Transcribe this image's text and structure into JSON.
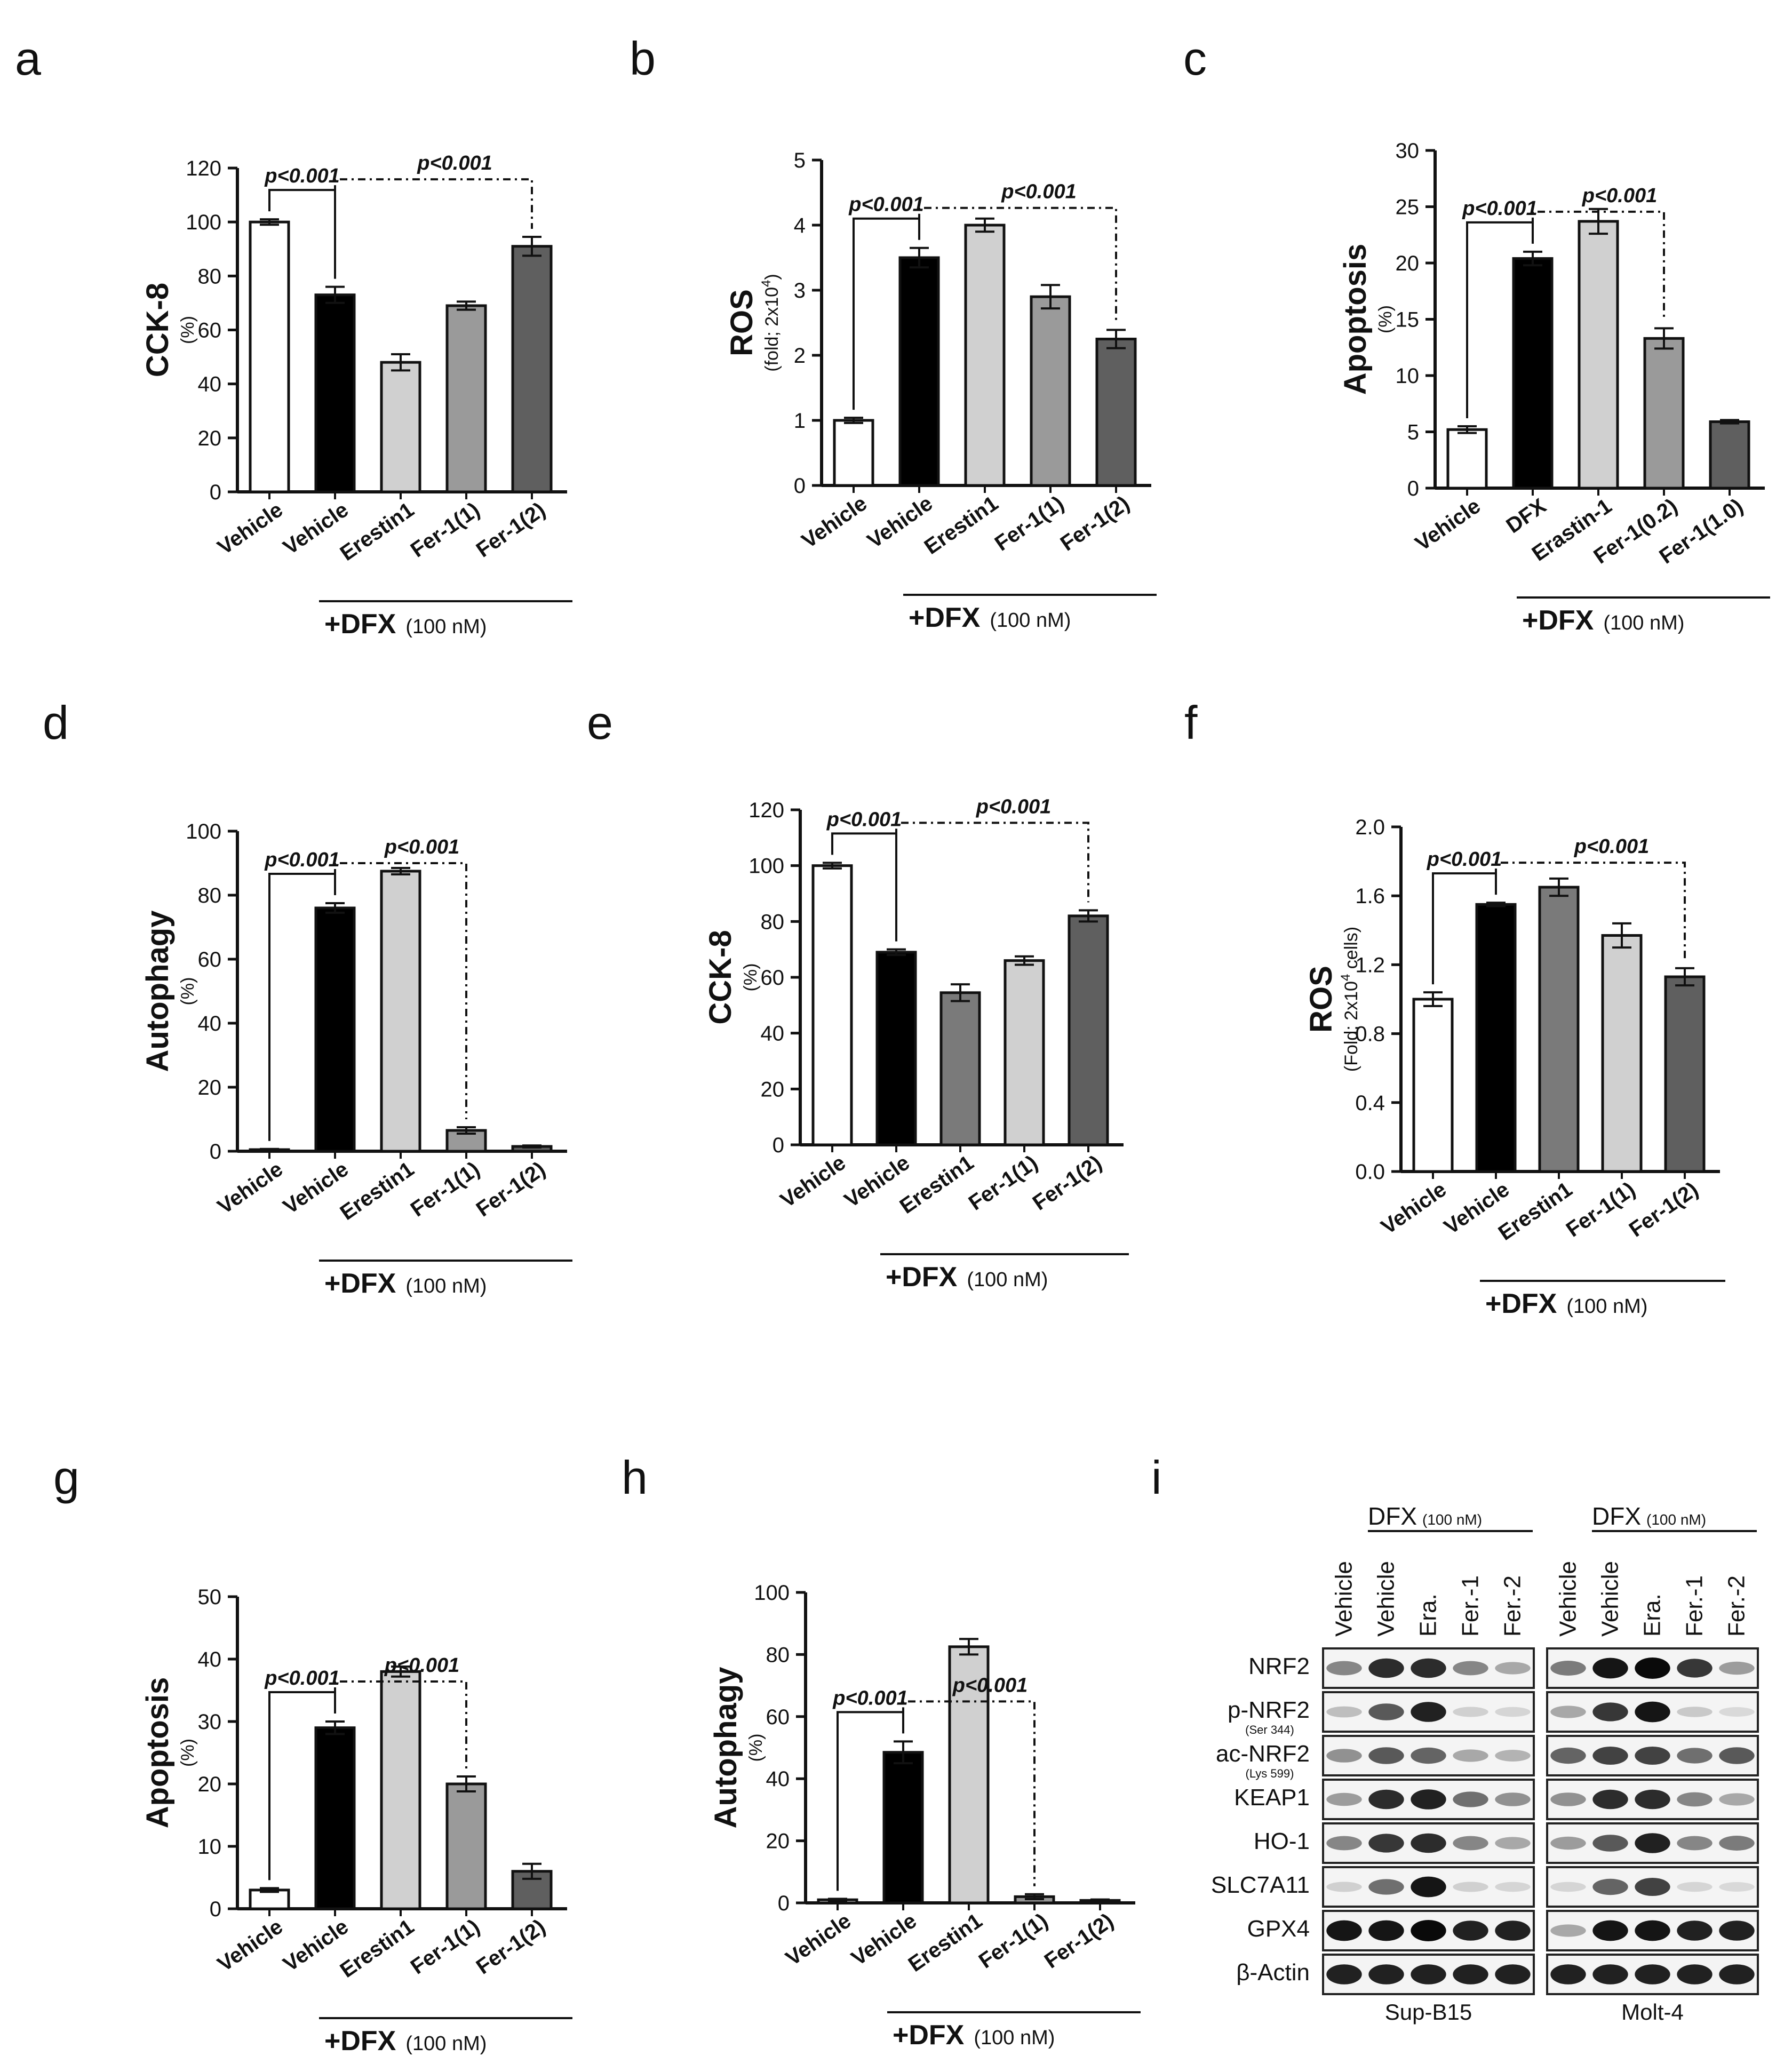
{
  "panel_labels": [
    "a",
    "b",
    "c",
    "d",
    "e",
    "f",
    "g",
    "h",
    "i"
  ],
  "chart_data": [
    {
      "id": "a",
      "type": "bar",
      "ylabel": "CCK-8",
      "yunit": "(%)",
      "ylim": [
        0,
        120
      ],
      "yticks": [
        "0",
        "20",
        "40",
        "60",
        "80",
        "100",
        "120"
      ],
      "categories": [
        "Vehicle",
        "Vehicle",
        "Erestin1",
        "Fer-1(1)",
        "Fer-1(2)"
      ],
      "values": [
        100,
        73,
        48,
        69,
        91
      ],
      "errors": [
        1,
        3,
        3,
        1.5,
        3.5
      ],
      "colors": [
        "#ffffff",
        "#000000",
        "#d0d0d0",
        "#9a9a9a",
        "#5f5f5f"
      ],
      "pvalues": [
        "p<0.001",
        "p<0.001"
      ],
      "treatment_label": "+DFX",
      "treatment_dose": "(100 nM)"
    },
    {
      "id": "b",
      "type": "bar",
      "ylabel": "ROS",
      "yunit": "(fold; 2x10",
      "yunit_sup": "4",
      "yunit_end": ")",
      "ylim": [
        0,
        5
      ],
      "yticks": [
        "0",
        "1",
        "2",
        "3",
        "4",
        "5"
      ],
      "categories": [
        "Vehicle",
        "Vehicle",
        "Erestin1",
        "Fer-1(1)",
        "Fer-1(2)"
      ],
      "values": [
        1.0,
        3.5,
        4.0,
        2.9,
        2.25
      ],
      "errors": [
        0.04,
        0.15,
        0.1,
        0.18,
        0.14
      ],
      "colors": [
        "#ffffff",
        "#000000",
        "#d0d0d0",
        "#9a9a9a",
        "#5f5f5f"
      ],
      "pvalues": [
        "p<0.001",
        "p<0.001"
      ],
      "treatment_label": "+DFX",
      "treatment_dose": "(100 nM)"
    },
    {
      "id": "c",
      "type": "bar",
      "ylabel": "Apoptosis",
      "yunit": "(%)",
      "ylim": [
        0,
        30
      ],
      "yticks": [
        "0",
        "5",
        "10",
        "15",
        "20",
        "25",
        "30"
      ],
      "categories": [
        "Vehicle",
        "DFX",
        "Erastin-1",
        "Fer-1(0.2)",
        "Fer-1(1.0)"
      ],
      "values": [
        5.2,
        20.4,
        23.7,
        13.3,
        5.9
      ],
      "errors": [
        0.3,
        0.6,
        1.1,
        0.9,
        0.15
      ],
      "colors": [
        "#ffffff",
        "#000000",
        "#d0d0d0",
        "#9a9a9a",
        "#5f5f5f"
      ],
      "pvalues": [
        "p<0.001",
        "p<0.001"
      ],
      "treatment_label": "+DFX",
      "treatment_dose": "(100 nM)"
    },
    {
      "id": "d",
      "type": "bar",
      "ylabel": "Autophagy",
      "yunit": "(%)",
      "ylim": [
        0,
        100
      ],
      "yticks": [
        "0",
        "20",
        "40",
        "60",
        "80",
        "100"
      ],
      "categories": [
        "Vehicle",
        "Vehicle",
        "Erestin1",
        "Fer-1(1)",
        "Fer-1(2)"
      ],
      "values": [
        0.5,
        76,
        87.5,
        6.5,
        1.5
      ],
      "errors": [
        0.2,
        1.5,
        1,
        1,
        0.3
      ],
      "colors": [
        "#ffffff",
        "#000000",
        "#d0d0d0",
        "#9a9a9a",
        "#5f5f5f"
      ],
      "pvalues": [
        "p<0.001",
        "p<0.001"
      ],
      "treatment_label": "+DFX",
      "treatment_dose": "(100 nM)"
    },
    {
      "id": "e",
      "type": "bar",
      "ylabel": "CCK-8",
      "yunit": "(%)",
      "ylim": [
        0,
        120
      ],
      "yticks": [
        "0",
        "20",
        "40",
        "60",
        "80",
        "100",
        "120"
      ],
      "categories": [
        "Vehicle",
        "Vehicle",
        "Erestin1",
        "Fer-1(1)",
        "Fer-1(2)"
      ],
      "values": [
        100,
        69,
        54.5,
        66,
        82
      ],
      "errors": [
        1,
        1,
        3,
        1.5,
        2
      ],
      "colors": [
        "#ffffff",
        "#000000",
        "#7a7a7a",
        "#d0d0d0",
        "#5f5f5f"
      ],
      "pvalues": [
        "p<0.001",
        "p<0.001"
      ],
      "treatment_label": "+DFX",
      "treatment_dose": "(100 nM)"
    },
    {
      "id": "f",
      "type": "bar",
      "ylabel": "ROS",
      "yunit": "(Fold; 2x10",
      "yunit_sup": "4",
      "yunit_end": " cells)",
      "ylim": [
        0,
        2.0
      ],
      "yticks": [
        "0.0",
        "0.4",
        "0.8",
        "1.2",
        "1.6",
        "2.0"
      ],
      "categories": [
        "Vehicle",
        "Vehicle",
        "Erestin1",
        "Fer-1(1)",
        "Fer-1(2)"
      ],
      "values": [
        1.0,
        1.55,
        1.65,
        1.37,
        1.13
      ],
      "errors": [
        0.04,
        0.01,
        0.05,
        0.07,
        0.05
      ],
      "colors": [
        "#ffffff",
        "#000000",
        "#7a7a7a",
        "#d0d0d0",
        "#5f5f5f"
      ],
      "pvalues": [
        "p<0.001",
        "p<0.001"
      ],
      "treatment_label": "+DFX",
      "treatment_dose": "(100 nM)"
    },
    {
      "id": "g",
      "type": "bar",
      "ylabel": "Apoptosis",
      "yunit": "(%)",
      "ylim": [
        0,
        50
      ],
      "yticks": [
        "0",
        "10",
        "20",
        "30",
        "40",
        "50"
      ],
      "categories": [
        "Vehicle",
        "Vehicle",
        "Erestin1",
        "Fer-1(1)",
        "Fer-1(2)"
      ],
      "values": [
        3,
        29,
        38,
        20,
        6
      ],
      "errors": [
        0.3,
        1,
        0.8,
        1.2,
        1.2
      ],
      "colors": [
        "#ffffff",
        "#000000",
        "#d0d0d0",
        "#9a9a9a",
        "#5f5f5f"
      ],
      "pvalues": [
        "p<0.001",
        "p<0.001"
      ],
      "treatment_label": "+DFX",
      "treatment_dose": "(100 nM)"
    },
    {
      "id": "h",
      "type": "bar",
      "ylabel": "Autophagy",
      "yunit": "(%)",
      "ylim": [
        0,
        100
      ],
      "yticks": [
        "0",
        "20",
        "40",
        "60",
        "80",
        "100"
      ],
      "categories": [
        "Vehicle",
        "Vehicle",
        "Erestin1",
        "Fer-1(1)",
        "Fer-1(2)"
      ],
      "values": [
        1,
        48.5,
        82.5,
        2,
        0.8
      ],
      "errors": [
        0.3,
        3.5,
        2.5,
        0.8,
        0.3
      ],
      "colors": [
        "#ffffff",
        "#000000",
        "#d0d0d0",
        "#9a9a9a",
        "#5f5f5f"
      ],
      "pvalues": [
        "p<0.001",
        "p<0.001"
      ],
      "treatment_label": "+DFX",
      "treatment_dose": "(100 nM)"
    }
  ],
  "blot": {
    "id": "i",
    "group_header": "DFX",
    "group_dose": "(100 nM)",
    "lanes": [
      "Vehicle",
      "Vehicle",
      "Era.",
      "Fer.-1",
      "Fer.-2"
    ],
    "cell_lines": [
      "Sup-B15",
      "Molt-4"
    ],
    "rows": [
      {
        "label": "NRF2",
        "sub": ""
      },
      {
        "label": "p-NRF2",
        "sub": "(Ser 344)"
      },
      {
        "label": "ac-NRF2",
        "sub": "(Lys 599)"
      },
      {
        "label": "KEAP1",
        "sub": ""
      },
      {
        "label": "HO-1",
        "sub": ""
      },
      {
        "label": "SLC7A11",
        "sub": ""
      },
      {
        "label": "GPX4",
        "sub": ""
      },
      {
        "label": "β-Actin",
        "sub": ""
      }
    ],
    "intensities": {
      "Sup-B15": [
        [
          0.45,
          0.85,
          0.85,
          0.45,
          0.3
        ],
        [
          0.2,
          0.65,
          0.9,
          0.12,
          0.1
        ],
        [
          0.4,
          0.65,
          0.6,
          0.3,
          0.25
        ],
        [
          0.35,
          0.85,
          0.9,
          0.55,
          0.4
        ],
        [
          0.45,
          0.8,
          0.85,
          0.45,
          0.3
        ],
        [
          0.12,
          0.55,
          0.95,
          0.12,
          0.1
        ],
        [
          0.95,
          0.95,
          1.0,
          0.9,
          0.9
        ],
        [
          0.9,
          0.9,
          0.9,
          0.9,
          0.9
        ]
      ],
      "Molt-4": [
        [
          0.5,
          0.95,
          1.0,
          0.8,
          0.35
        ],
        [
          0.3,
          0.8,
          0.95,
          0.15,
          0.08
        ],
        [
          0.6,
          0.75,
          0.75,
          0.55,
          0.65
        ],
        [
          0.4,
          0.85,
          0.85,
          0.45,
          0.3
        ],
        [
          0.35,
          0.65,
          0.9,
          0.45,
          0.5
        ],
        [
          0.1,
          0.6,
          0.75,
          0.1,
          0.08
        ],
        [
          0.3,
          0.95,
          0.95,
          0.9,
          0.9
        ],
        [
          0.9,
          0.9,
          0.9,
          0.9,
          0.9
        ]
      ]
    }
  }
}
